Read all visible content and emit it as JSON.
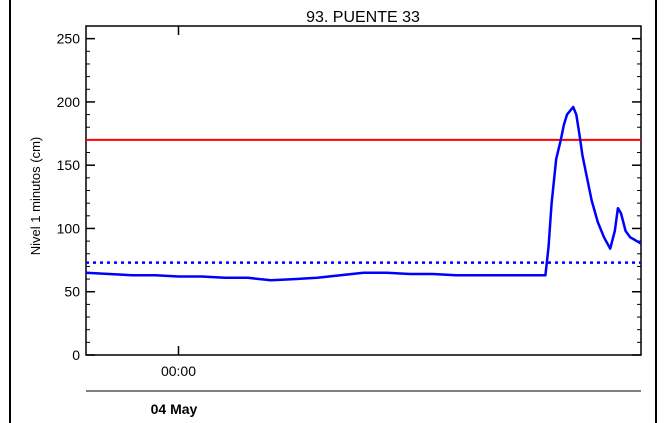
{
  "chart_data": {
    "type": "line",
    "title": "93. PUENTE 33",
    "ylabel": "Nivel 1 minutos (cm)",
    "xlabel": "",
    "ylim": [
      0,
      260
    ],
    "yticks": [
      0,
      50,
      100,
      150,
      200,
      250
    ],
    "xlim": [
      -0.6,
      3.0
    ],
    "x_unit": "hours relative to 04 May 00:00",
    "xtick_labels": [
      {
        "x": 0,
        "label": "00:00"
      }
    ],
    "date_label": "04 May",
    "grid": false,
    "reference_lines": [
      {
        "y": 170,
        "color": "#ff0000",
        "style": "solid"
      },
      {
        "y": 73,
        "color": "#0000ff",
        "style": "dotted"
      }
    ],
    "series": [
      {
        "color": "#0000ff",
        "x": [
          -0.6,
          -0.45,
          -0.3,
          -0.15,
          0.0,
          0.15,
          0.3,
          0.45,
          0.6,
          0.75,
          0.9,
          1.05,
          1.2,
          1.35,
          1.5,
          1.65,
          1.8,
          1.95,
          2.1,
          2.25,
          2.35,
          2.38,
          2.4,
          2.42,
          2.45,
          2.48,
          2.5,
          2.52,
          2.54,
          2.56,
          2.58,
          2.6,
          2.62,
          2.65,
          2.68,
          2.72,
          2.76,
          2.8,
          2.83,
          2.85,
          2.87,
          2.9,
          2.93,
          2.96,
          3.0
        ],
        "y": [
          65,
          64,
          63,
          63,
          62,
          62,
          61,
          61,
          59,
          60,
          61,
          63,
          65,
          65,
          64,
          64,
          63,
          63,
          63,
          63,
          63,
          63,
          85,
          120,
          155,
          170,
          182,
          190,
          193,
          196,
          190,
          175,
          158,
          140,
          122,
          105,
          93,
          84,
          98,
          116,
          112,
          98,
          93,
          91,
          88
        ]
      }
    ]
  }
}
